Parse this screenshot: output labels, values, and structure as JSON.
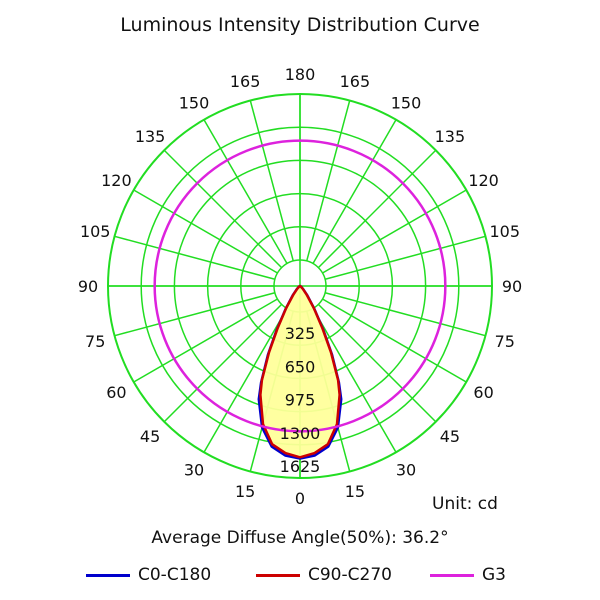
{
  "chart_data": {
    "type": "polar",
    "title": "Luminous Intensity Distribution Curve",
    "unit_label": "Unit: cd",
    "average_diffuse_angle_label": "Average Diffuse Angle(50%): 36.2°",
    "radial_ticks": [
      "325",
      "650",
      "975",
      "1300",
      "1625"
    ],
    "radial_max": 1625,
    "angle_tick_labels": {
      "right": [
        "0",
        "15",
        "30",
        "45",
        "60",
        "75",
        "90",
        "105",
        "120",
        "135",
        "150",
        "165",
        "180"
      ],
      "left": [
        "15",
        "30",
        "45",
        "60",
        "75",
        "90",
        "105",
        "120",
        "135",
        "150",
        "165"
      ]
    },
    "grid_color": "#22dd22",
    "fill_color": "#ffff99",
    "series": [
      {
        "name": "C0-C180",
        "color": "#0000cc",
        "angles": [
          0,
          5,
          10,
          15,
          20,
          22,
          25,
          28,
          32,
          38,
          45,
          60,
          90,
          180
        ],
        "values": [
          1460,
          1440,
          1380,
          1240,
          1020,
          880,
          640,
          420,
          230,
          100,
          40,
          10,
          0,
          0
        ]
      },
      {
        "name": "C90-C270",
        "color": "#cc0000",
        "angles": [
          0,
          5,
          10,
          15,
          20,
          22,
          25,
          28,
          32,
          38,
          45,
          60,
          90,
          180
        ],
        "values": [
          1450,
          1420,
          1360,
          1210,
          980,
          860,
          620,
          400,
          220,
          90,
          35,
          8,
          0,
          0
        ]
      },
      {
        "name": "G3",
        "color": "#dd22dd",
        "type": "circle",
        "value": 1230
      }
    ]
  }
}
